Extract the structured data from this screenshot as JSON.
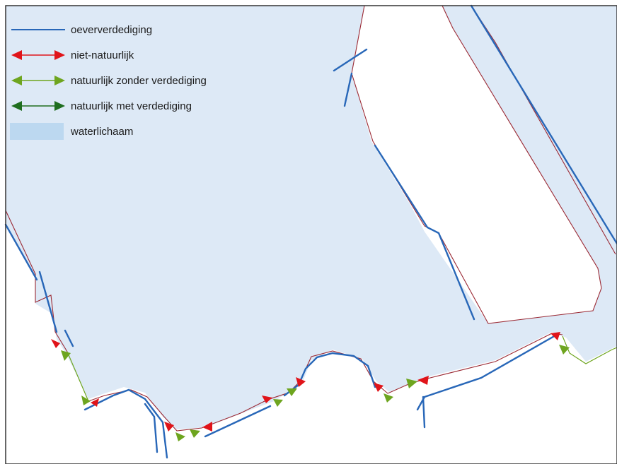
{
  "legend": {
    "items": [
      {
        "label": "oeververdediging",
        "symbol": "blue-line"
      },
      {
        "label": "niet-natuurlijk",
        "symbol": "red-double-arrow"
      },
      {
        "label": "natuurlijk zonder verdediging",
        "symbol": "lightgreen-double-arrow"
      },
      {
        "label": "natuurlijk met verdediging",
        "symbol": "darkgreen-double-arrow"
      },
      {
        "label": "waterlichaam",
        "symbol": "water-fill"
      }
    ]
  },
  "colors": {
    "water": "#dde9f6",
    "land": "#ffffff",
    "shoreline": "#9b2a35",
    "bank_protection": "#2867b8",
    "non_natural": "#e0141a",
    "natural_without_protection": "#6ea51f",
    "natural_with_protection": "#1f6e1f",
    "legend_water": "#bcd8f0",
    "frame": "#333333"
  }
}
